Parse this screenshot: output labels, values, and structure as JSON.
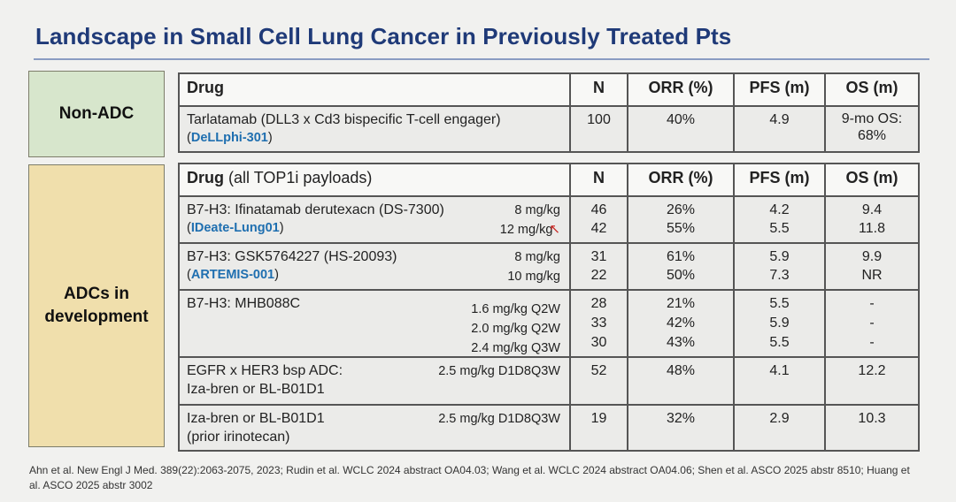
{
  "title": "Landscape in Small Cell Lung Cancer in Previously Treated Pts",
  "categories": {
    "non_adc": "Non-ADC",
    "adc": "ADCs in\ndevelopment"
  },
  "table1": {
    "headers": {
      "drug": "Drug",
      "n": "N",
      "orr": "ORR (%)",
      "pfs": "PFS (m)",
      "os": "OS (m)"
    },
    "row": {
      "drug": "Tarlatamab (DLL3 x Cd3 bispecific T-cell engager)",
      "trial_open": "(",
      "trial": "DeLLphi-301",
      "trial_close": ")",
      "n": "100",
      "orr": "40%",
      "pfs": "4.9",
      "os": "9-mo OS: 68%"
    }
  },
  "table2": {
    "headers": {
      "drug": "Drug",
      "drug_sub": "(all TOP1i payloads)",
      "n": "N",
      "orr": "ORR (%)",
      "pfs": "PFS (m)",
      "os": "OS (m)"
    },
    "rows": [
      {
        "drug_line1": "B7-H3: Ifinatamab derutexacn (DS-7300)",
        "trial": "IDeate-Lung01",
        "doses": [
          "8 mg/kg",
          "12 mg/kg"
        ],
        "n": [
          "46",
          "42"
        ],
        "orr": [
          "26%",
          "55%"
        ],
        "pfs": [
          "4.2",
          "5.5"
        ],
        "os": [
          "9.4",
          "11.8"
        ]
      },
      {
        "drug_line1": "B7-H3: GSK5764227 (HS-20093)",
        "trial": "ARTEMIS-001",
        "doses": [
          "8 mg/kg",
          "10 mg/kg"
        ],
        "n": [
          "31",
          "22"
        ],
        "orr": [
          "61%",
          "50%"
        ],
        "pfs": [
          "5.9",
          "7.3"
        ],
        "os": [
          "9.9",
          "NR"
        ]
      },
      {
        "drug_line1": "B7-H3: MHB088C",
        "doses": [
          "1.6 mg/kg Q2W",
          "2.0 mg/kg Q2W",
          "2.4 mg/kg Q3W"
        ],
        "n": [
          "28",
          "33",
          "30"
        ],
        "orr": [
          "21%",
          "42%",
          "43%"
        ],
        "pfs": [
          "5.5",
          "5.9",
          "5.5"
        ],
        "os": [
          "-",
          "-",
          "-"
        ]
      },
      {
        "drug_line1": "EGFR x HER3 bsp ADC:",
        "drug_line2": "Iza-bren or BL-B01D1",
        "doses": [
          "2.5 mg/kg D1D8Q3W"
        ],
        "n": [
          "52"
        ],
        "orr": [
          "48%"
        ],
        "pfs": [
          "4.1"
        ],
        "os": [
          "12.2"
        ]
      },
      {
        "drug_line1": "Iza-bren or BL-B01D1",
        "drug_line2": "(prior irinotecan)",
        "doses": [
          "2.5 mg/kg D1D8Q3W"
        ],
        "n": [
          "19"
        ],
        "orr": [
          "32%"
        ],
        "pfs": [
          "2.9"
        ],
        "os": [
          "10.3"
        ]
      }
    ]
  },
  "footer": "Ahn et al. New Engl J Med. 389(22):2063-2075, 2023; Rudin et al. WCLC 2024 abstract OA04.03; Wang et al. WCLC 2024 abstract OA04.06; Shen et al. ASCO 2025 abstr 8510; Huang et al. ASCO 2025 abstr 3002",
  "icons": {
    "cursor": "pointer-cursor-icon"
  },
  "colors": {
    "title": "#1f3a78",
    "non_adc_bg": "#d7e6cc",
    "adc_bg": "#f0dfac",
    "trial_link": "#1f6fb0"
  }
}
